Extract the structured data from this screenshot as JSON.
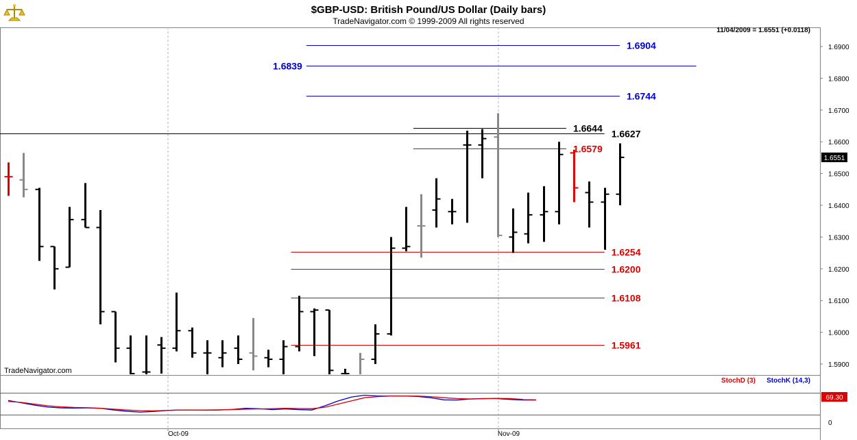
{
  "header": {
    "title": "$GBP-USD:  British Pound/US Dollar  (Daily bars)",
    "copyright": "TradeNavigator.com © 1999-2009 All rights reserved",
    "last_quote": "11/04/2009 = 1.6551 (+0.0118)",
    "watermark": "TradeNavigator.com"
  },
  "colors": {
    "up_bar": "#000000",
    "down_bar": "#888888",
    "highlight_bar": "#dd0000",
    "blue_level": "#0000cc",
    "red_level": "#dd0000",
    "black_level": "#000000",
    "stoch_d": "#dd0000",
    "stoch_k": "#0000cc"
  },
  "chart_data": {
    "type": "bar",
    "subtype": "ohlc",
    "x_tick_labels": [
      "Oct-09",
      "Nov-09"
    ],
    "price_axis": {
      "ticks": [
        "1.5900",
        "1.6000",
        "1.6100",
        "1.6200",
        "1.6300",
        "1.6400",
        "1.6500",
        "1.6600",
        "1.6700",
        "1.6800",
        "1.6900"
      ],
      "current_label": "1.6551",
      "ylim": [
        1.587,
        1.6935
      ]
    },
    "bars": [
      {
        "o": 1.649,
        "h": 1.6535,
        "l": 1.643,
        "c": 1.649,
        "color": "red"
      },
      {
        "o": 1.648,
        "h": 1.6565,
        "l": 1.6425,
        "c": 1.645,
        "color": "gray"
      },
      {
        "o": 1.645,
        "h": 1.6455,
        "l": 1.6225,
        "c": 1.627,
        "color": "black"
      },
      {
        "o": 1.627,
        "h": 1.627,
        "l": 1.6135,
        "c": 1.62,
        "color": "black"
      },
      {
        "o": 1.6205,
        "h": 1.6395,
        "l": 1.6205,
        "c": 1.6355,
        "color": "black"
      },
      {
        "o": 1.6355,
        "h": 1.647,
        "l": 1.633,
        "c": 1.633,
        "color": "black"
      },
      {
        "o": 1.633,
        "h": 1.6385,
        "l": 1.6025,
        "c": 1.6065,
        "color": "black"
      },
      {
        "o": 1.6065,
        "h": 1.6065,
        "l": 1.5905,
        "c": 1.595,
        "color": "black"
      },
      {
        "o": 1.595,
        "h": 1.599,
        "l": 1.586,
        "c": 1.587,
        "color": "black"
      },
      {
        "o": 1.5875,
        "h": 1.599,
        "l": 1.586,
        "c": 1.5875,
        "color": "black"
      },
      {
        "o": 1.596,
        "h": 1.5985,
        "l": 1.587,
        "c": 1.595,
        "color": "black"
      },
      {
        "o": 1.595,
        "h": 1.6125,
        "l": 1.594,
        "c": 1.6005,
        "color": "black"
      },
      {
        "o": 1.6005,
        "h": 1.6015,
        "l": 1.592,
        "c": 1.5935,
        "color": "black"
      },
      {
        "o": 1.5935,
        "h": 1.5975,
        "l": 1.5865,
        "c": 1.5935,
        "color": "black"
      },
      {
        "o": 1.592,
        "h": 1.5975,
        "l": 1.589,
        "c": 1.5935,
        "color": "black"
      },
      {
        "o": 1.595,
        "h": 1.599,
        "l": 1.59,
        "c": 1.5915,
        "color": "black"
      },
      {
        "o": 1.5935,
        "h": 1.6045,
        "l": 1.588,
        "c": 1.5925,
        "color": "gray"
      },
      {
        "o": 1.592,
        "h": 1.5945,
        "l": 1.589,
        "c": 1.5915,
        "color": "black"
      },
      {
        "o": 1.5915,
        "h": 1.5975,
        "l": 1.5865,
        "c": 1.5955,
        "color": "black"
      },
      {
        "o": 1.5955,
        "h": 1.6115,
        "l": 1.594,
        "c": 1.6065,
        "color": "black"
      },
      {
        "o": 1.6065,
        "h": 1.6075,
        "l": 1.5925,
        "c": 1.607,
        "color": "black"
      },
      {
        "o": 1.607,
        "h": 1.607,
        "l": 1.5865,
        "c": 1.588,
        "color": "black"
      },
      {
        "o": 1.587,
        "h": 1.5885,
        "l": 1.5865,
        "c": 1.587,
        "color": "black"
      },
      {
        "o": 1.5865,
        "h": 1.5935,
        "l": 1.5865,
        "c": 1.5915,
        "color": "gray"
      },
      {
        "o": 1.5915,
        "h": 1.6025,
        "l": 1.59,
        "c": 1.5995,
        "color": "black"
      },
      {
        "o": 1.5995,
        "h": 1.63,
        "l": 1.599,
        "c": 1.6265,
        "color": "black"
      },
      {
        "o": 1.6265,
        "h": 1.6395,
        "l": 1.6255,
        "c": 1.627,
        "color": "black"
      },
      {
        "o": 1.6335,
        "h": 1.6435,
        "l": 1.6235,
        "c": 1.6335,
        "color": "gray"
      },
      {
        "o": 1.6385,
        "h": 1.6485,
        "l": 1.633,
        "c": 1.642,
        "color": "black"
      },
      {
        "o": 1.638,
        "h": 1.642,
        "l": 1.634,
        "c": 1.638,
        "color": "black"
      },
      {
        "o": 1.659,
        "h": 1.6635,
        "l": 1.6345,
        "c": 1.659,
        "color": "black"
      },
      {
        "o": 1.659,
        "h": 1.664,
        "l": 1.6485,
        "c": 1.661,
        "color": "black"
      },
      {
        "o": 1.6615,
        "h": 1.669,
        "l": 1.63,
        "c": 1.6305,
        "color": "gray"
      },
      {
        "o": 1.63,
        "h": 1.639,
        "l": 1.625,
        "c": 1.6315,
        "color": "black"
      },
      {
        "o": 1.631,
        "h": 1.644,
        "l": 1.628,
        "c": 1.637,
        "color": "black"
      },
      {
        "o": 1.637,
        "h": 1.646,
        "l": 1.6285,
        "c": 1.638,
        "color": "black"
      },
      {
        "o": 1.638,
        "h": 1.66,
        "l": 1.634,
        "c": 1.656,
        "color": "black"
      },
      {
        "o": 1.6565,
        "h": 1.6575,
        "l": 1.641,
        "c": 1.6455,
        "color": "red"
      },
      {
        "o": 1.644,
        "h": 1.6475,
        "l": 1.633,
        "c": 1.641,
        "color": "black"
      },
      {
        "o": 1.641,
        "h": 1.6455,
        "l": 1.626,
        "c": 1.6435,
        "color": "black"
      },
      {
        "o": 1.6435,
        "h": 1.6595,
        "l": 1.64,
        "c": 1.6551,
        "color": "black"
      }
    ],
    "levels": [
      {
        "value": 1.6904,
        "label": "1.6904",
        "color": "blue",
        "x_start_bar": 19.5,
        "x_end_bar": 40,
        "label_side": "right"
      },
      {
        "value": 1.6839,
        "label": "1.6839",
        "color": "blue",
        "x_start_bar": 19.5,
        "x_end_bar": 45,
        "label_side": "left"
      },
      {
        "value": 1.6744,
        "label": "1.6744",
        "color": "blue",
        "x_start_bar": 19.5,
        "x_end_bar": 40,
        "label_side": "right"
      },
      {
        "value": 1.6644,
        "label": "1.6644",
        "color": "black",
        "x_start_bar": 26.5,
        "x_end_bar": 36.5,
        "label_side": "right"
      },
      {
        "value": 1.6627,
        "label": "1.6627",
        "color": "black",
        "x_start_bar": -1,
        "x_end_bar": 39,
        "label_side": "right"
      },
      {
        "value": 1.6579,
        "label": "1.6579",
        "color": "red",
        "x_start_bar": 26.5,
        "x_end_bar": 36.5,
        "label_side": "right"
      },
      {
        "value": 1.6254,
        "label": "1.6254",
        "color": "red",
        "x_start_bar": 18.5,
        "x_end_bar": 39,
        "label_side": "right"
      },
      {
        "value": 1.62,
        "label": "1.6200",
        "color": "red",
        "x_start_bar": 18.5,
        "x_end_bar": 39,
        "label_side": "right"
      },
      {
        "value": 1.6108,
        "label": "1.6108",
        "color": "red",
        "x_start_bar": 18.5,
        "x_end_bar": 39,
        "label_side": "right"
      },
      {
        "value": 1.5961,
        "label": "1.5961",
        "color": "red",
        "x_start_bar": 18.5,
        "x_end_bar": 39,
        "label_side": "right"
      }
    ],
    "stochastic": {
      "label_d": "StochD (3)",
      "label_k": "StochK (14,3)",
      "current_label": "69.30",
      "zero_label": "0",
      "ylim": [
        0,
        100
      ],
      "d": [
        62,
        58,
        50,
        42,
        37,
        34,
        33,
        30,
        26,
        22,
        19,
        18,
        20,
        22,
        22,
        22,
        23,
        24,
        26,
        27,
        28,
        30,
        29,
        28,
        35,
        50,
        65,
        80,
        85,
        88,
        88,
        88,
        85,
        80,
        76,
        74,
        75,
        77,
        76,
        72,
        70
      ],
      "k": [
        67,
        56,
        45,
        36,
        32,
        31,
        32,
        30,
        22,
        16,
        12,
        15,
        20,
        22,
        22,
        21,
        22,
        25,
        30,
        28,
        24,
        27,
        24,
        22,
        42,
        65,
        83,
        92,
        88,
        88,
        88,
        86,
        80,
        70,
        69,
        74,
        76,
        76,
        72,
        69,
        69
      ]
    },
    "grid": {
      "vertical_dashed": true
    }
  }
}
